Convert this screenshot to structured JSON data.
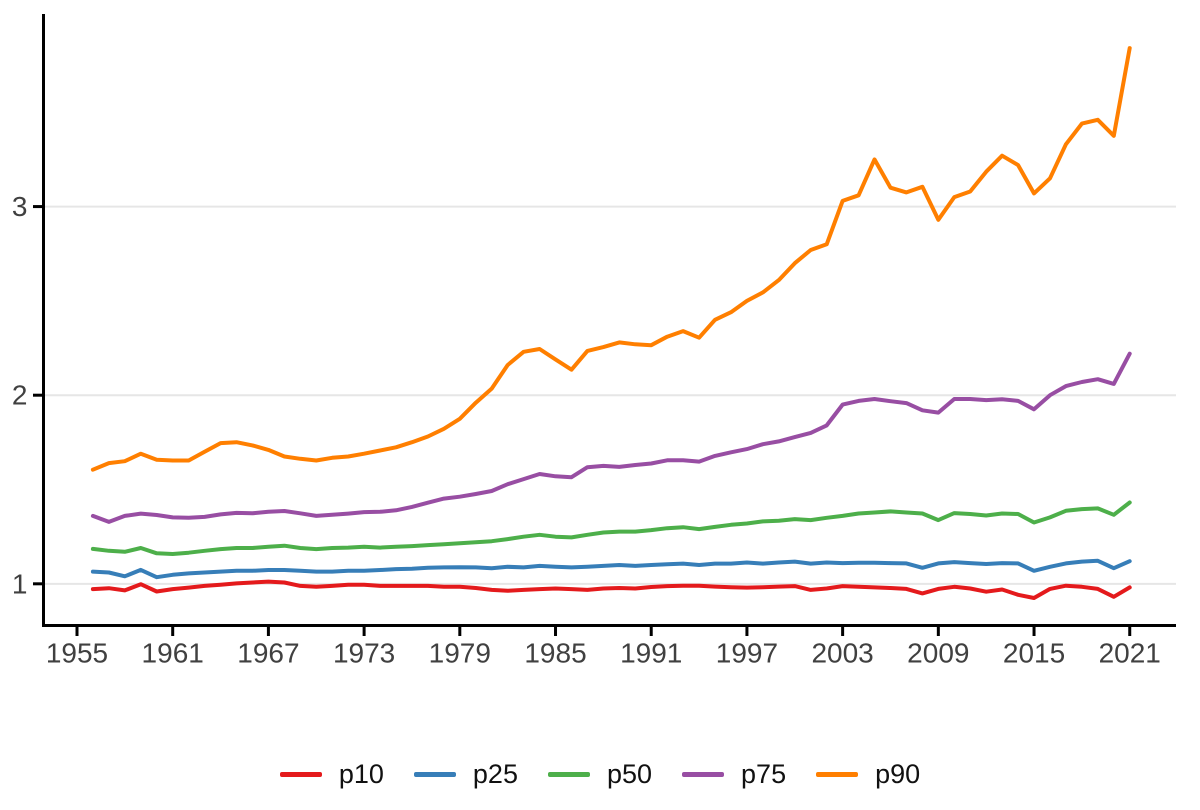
{
  "chart_data": {
    "type": "line",
    "title": "",
    "xlabel": "",
    "ylabel": "",
    "grid": "horizontal-major-only",
    "legend_position": "bottom-center",
    "x_ticks": [
      1955,
      1961,
      1967,
      1973,
      1979,
      1985,
      1991,
      1997,
      2003,
      2009,
      2015,
      2021
    ],
    "y_ticks": [
      1,
      2,
      3
    ],
    "x_range": [
      1952.9,
      2023.9
    ],
    "y_range": [
      0.779,
      4.021
    ],
    "x": [
      1956,
      1957,
      1958,
      1959,
      1960,
      1961,
      1962,
      1963,
      1964,
      1965,
      1966,
      1967,
      1968,
      1969,
      1970,
      1971,
      1972,
      1973,
      1974,
      1975,
      1976,
      1977,
      1978,
      1979,
      1980,
      1981,
      1982,
      1983,
      1984,
      1985,
      1986,
      1987,
      1988,
      1989,
      1990,
      1991,
      1992,
      1993,
      1994,
      1995,
      1996,
      1997,
      1998,
      1999,
      2000,
      2001,
      2002,
      2003,
      2004,
      2005,
      2006,
      2007,
      2008,
      2009,
      2010,
      2011,
      2012,
      2013,
      2014,
      2015,
      2016,
      2017,
      2018,
      2019,
      2020,
      2021
    ],
    "series": [
      {
        "name": "p10",
        "color": "#e41a1c",
        "values": [
          0.972,
          0.977,
          0.965,
          0.998,
          0.959,
          0.972,
          0.98,
          0.989,
          0.995,
          1.002,
          1.007,
          1.012,
          1.007,
          0.989,
          0.984,
          0.989,
          0.995,
          0.995,
          0.989,
          0.989,
          0.989,
          0.989,
          0.984,
          0.984,
          0.978,
          0.968,
          0.963,
          0.968,
          0.972,
          0.975,
          0.972,
          0.968,
          0.975,
          0.978,
          0.975,
          0.983,
          0.988,
          0.99,
          0.99,
          0.985,
          0.982,
          0.98,
          0.982,
          0.985,
          0.988,
          0.968,
          0.975,
          0.988,
          0.984,
          0.981,
          0.978,
          0.973,
          0.949,
          0.973,
          0.984,
          0.975,
          0.958,
          0.97,
          0.942,
          0.925,
          0.973,
          0.99,
          0.984,
          0.973,
          0.931,
          0.981
        ]
      },
      {
        "name": "p25",
        "color": "#377eb8",
        "values": [
          1.065,
          1.06,
          1.04,
          1.074,
          1.035,
          1.048,
          1.055,
          1.06,
          1.065,
          1.069,
          1.069,
          1.073,
          1.073,
          1.069,
          1.065,
          1.065,
          1.069,
          1.069,
          1.073,
          1.078,
          1.08,
          1.085,
          1.087,
          1.088,
          1.087,
          1.083,
          1.09,
          1.087,
          1.095,
          1.09,
          1.087,
          1.09,
          1.095,
          1.1,
          1.095,
          1.1,
          1.104,
          1.107,
          1.1,
          1.107,
          1.107,
          1.113,
          1.107,
          1.113,
          1.118,
          1.107,
          1.113,
          1.11,
          1.112,
          1.112,
          1.11,
          1.108,
          1.085,
          1.108,
          1.115,
          1.11,
          1.105,
          1.11,
          1.108,
          1.069,
          1.09,
          1.108,
          1.118,
          1.122,
          1.083,
          1.12
        ]
      },
      {
        "name": "p50",
        "color": "#4daf4a",
        "values": [
          1.185,
          1.175,
          1.17,
          1.19,
          1.162,
          1.158,
          1.165,
          1.175,
          1.184,
          1.19,
          1.19,
          1.196,
          1.202,
          1.19,
          1.184,
          1.19,
          1.192,
          1.196,
          1.192,
          1.196,
          1.2,
          1.205,
          1.21,
          1.215,
          1.22,
          1.226,
          1.237,
          1.25,
          1.26,
          1.25,
          1.246,
          1.26,
          1.272,
          1.277,
          1.277,
          1.285,
          1.295,
          1.3,
          1.29,
          1.302,
          1.313,
          1.32,
          1.331,
          1.334,
          1.343,
          1.338,
          1.35,
          1.36,
          1.373,
          1.378,
          1.384,
          1.378,
          1.373,
          1.338,
          1.375,
          1.37,
          1.362,
          1.373,
          1.37,
          1.325,
          1.352,
          1.387,
          1.396,
          1.4,
          1.366,
          1.431
        ]
      },
      {
        "name": "p75",
        "color": "#984ea3",
        "values": [
          1.36,
          1.328,
          1.36,
          1.372,
          1.365,
          1.352,
          1.35,
          1.355,
          1.368,
          1.376,
          1.374,
          1.382,
          1.386,
          1.374,
          1.36,
          1.366,
          1.372,
          1.38,
          1.382,
          1.39,
          1.408,
          1.43,
          1.452,
          1.462,
          1.476,
          1.492,
          1.528,
          1.555,
          1.582,
          1.57,
          1.565,
          1.618,
          1.625,
          1.62,
          1.63,
          1.638,
          1.655,
          1.655,
          1.648,
          1.678,
          1.697,
          1.714,
          1.74,
          1.755,
          1.778,
          1.8,
          1.84,
          1.95,
          1.97,
          1.98,
          1.968,
          1.958,
          1.92,
          1.908,
          1.98,
          1.98,
          1.974,
          1.978,
          1.97,
          1.925,
          2.0,
          2.048,
          2.07,
          2.085,
          2.06,
          2.22
        ]
      },
      {
        "name": "p90",
        "color": "#ff7f00",
        "values": [
          1.605,
          1.64,
          1.65,
          1.69,
          1.658,
          1.654,
          1.654,
          1.7,
          1.746,
          1.751,
          1.734,
          1.71,
          1.675,
          1.663,
          1.654,
          1.668,
          1.675,
          1.69,
          1.707,
          1.724,
          1.751,
          1.781,
          1.822,
          1.875,
          1.96,
          2.035,
          2.16,
          2.23,
          2.245,
          2.19,
          2.135,
          2.235,
          2.255,
          2.28,
          2.27,
          2.265,
          2.31,
          2.34,
          2.305,
          2.4,
          2.44,
          2.5,
          2.545,
          2.61,
          2.7,
          2.77,
          2.8,
          3.03,
          3.06,
          3.25,
          3.1,
          3.075,
          3.105,
          2.93,
          3.05,
          3.08,
          3.185,
          3.27,
          3.22,
          3.07,
          3.15,
          3.33,
          3.44,
          3.46,
          3.375,
          3.84
        ]
      }
    ],
    "style": {
      "axis_color": "#000000",
      "gridline_color": "#e6e6e6",
      "tick_label_color": "#404040",
      "background_color": "#ffffff"
    }
  },
  "legend": {
    "items": [
      "p10",
      "p25",
      "p50",
      "p75",
      "p90"
    ]
  }
}
